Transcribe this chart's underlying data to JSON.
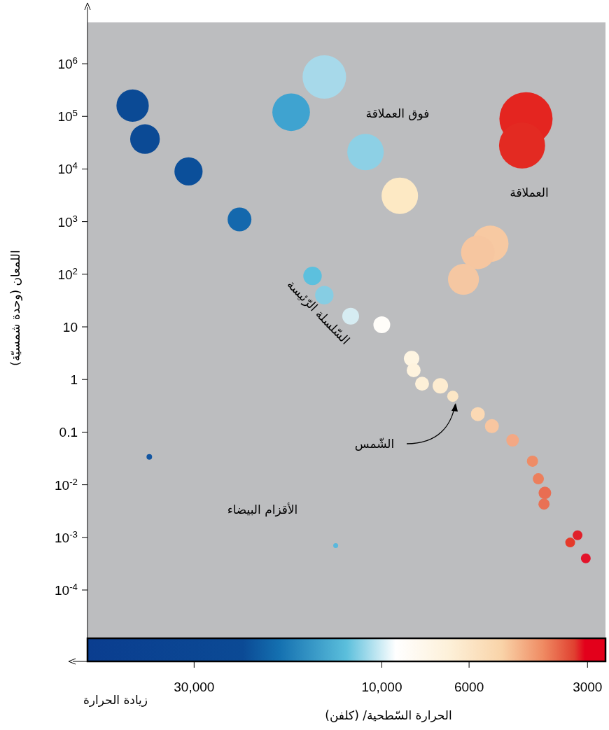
{
  "chart_data": {
    "type": "bubble",
    "xlabel": "الحرارة السّطحية/ (كلفن)",
    "ylabel": "اللمعان (وحدة شمسيّة)",
    "log": "xy",
    "marker": "circle",
    "x": [
      43000,
      40000,
      31000,
      23000,
      17000,
      14000,
      11000,
      9000,
      5300,
      5700,
      6200,
      4300,
      4400,
      15000,
      14000,
      12000,
      10000,
      8400,
      8300,
      7900,
      7100,
      6600,
      5700,
      5250,
      4650,
      4140,
      4000,
      3850,
      3870,
      3180,
      3320,
      3030,
      39000,
      13100
    ],
    "values": [
      160000,
      37000,
      9000,
      1100,
      120000,
      560000,
      21000,
      3100,
      380,
      260,
      80,
      90000,
      28000,
      93,
      40,
      16,
      11,
      2.5,
      1.5,
      0.83,
      0.76,
      0.48,
      0.22,
      0.13,
      0.07,
      0.028,
      0.013,
      0.007,
      0.0043,
      0.0011,
      0.0008,
      0.0004,
      0.034,
      0.0007
    ],
    "sizes": [
      0.37,
      0.31,
      0.28,
      0.2,
      0.5,
      0.67,
      0.47,
      0.47,
      0.47,
      0.4,
      0.34,
      1,
      0.75,
      0.12,
      0.12,
      0.1,
      0.1,
      0.084,
      0.069,
      0.069,
      0.084,
      0.044,
      0.069,
      0.069,
      0.056,
      0.044,
      0.044,
      0.056,
      0.044,
      0.034,
      0.034,
      0.034,
      0.011,
      0.0085
    ],
    "colors": [
      "#0b4a95",
      "#0b4a95",
      "#0b4f9a",
      "#1468ad",
      "#3fa3d0",
      "#a7d9ea",
      "#8dd0e5",
      "#fde9c4",
      "#f7c9a2",
      "#f6c6a0",
      "#f5c7a2",
      "#e42520",
      "#e32a22",
      "#5cc0de",
      "#86cde3",
      "#d6ecf2",
      "#fffdf9",
      "#fef5e2",
      "#fef3de",
      "#fdf0d8",
      "#fdecd0",
      "#fce7c6",
      "#fbd9b4",
      "#f8c6a0",
      "#f3a884",
      "#ee8c66",
      "#ec7f5c",
      "#e96d52",
      "#e97155",
      "#e1202a",
      "#e53a2a",
      "#e3132a",
      "#1356a1",
      "#5ab8dc"
    ],
    "xlim": [
      56000,
      2700
    ],
    "ylim": [
      4.4e-06,
      6100000
    ],
    "xticks": [
      {
        "value": 30000,
        "label": "30,000"
      },
      {
        "value": 10000,
        "label": "10,000"
      },
      6000,
      3000
    ],
    "yticks": [
      {
        "value": 0.0001,
        "label": "10$^{-4}$"
      },
      {
        "value": 0.001,
        "label": "10$^{-3}$"
      },
      {
        "value": 0.01,
        "label": "10$^{-2}$"
      },
      0.1,
      1,
      10,
      {
        "value": 100,
        "label": "10$^{2}$"
      },
      {
        "value": 1000,
        "label": "10$^{3}$"
      },
      {
        "value": 10000,
        "label": "10$^{4}$"
      },
      {
        "value": 100000,
        "label": "10$^{5}$"
      },
      {
        "value": 1000000,
        "label": "10$^{6}$"
      }
    ],
    "annotations": [
      "فوق العملاقة",
      "العملاقة",
      "السّلسلة الرّئيسة",
      "الشّمس",
      "الأقزام البيضاء",
      "زيادة الحرارة"
    ]
  }
}
